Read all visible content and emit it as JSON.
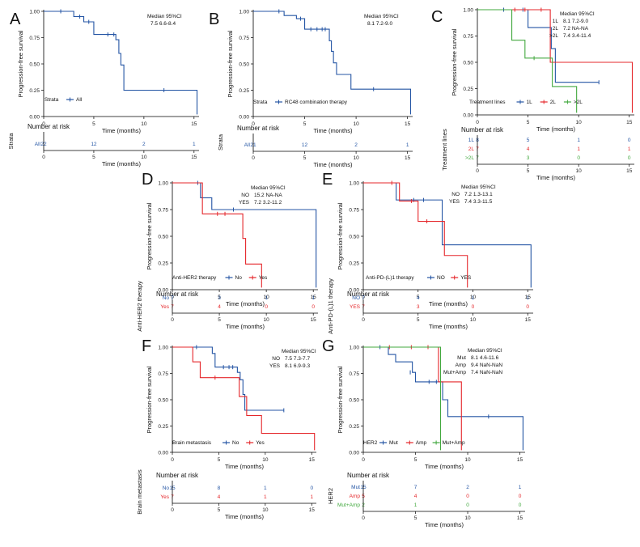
{
  "colors": {
    "blue": "#2455a4",
    "red": "#e5272b",
    "green": "#42a83e",
    "axis": "#000000",
    "text": "#222222"
  },
  "chart_data": [
    {
      "panel": "A",
      "type": "line",
      "title": "",
      "ylabel": "Progression-free survival",
      "xlabel": "Time (months)",
      "xlim": [
        0,
        15.5
      ],
      "ylim": [
        0,
        1
      ],
      "xticks": [
        "0",
        "5",
        "10",
        "15"
      ],
      "yticks": [
        "0.00",
        "0.25",
        "0.50",
        "0.75",
        "1.00"
      ],
      "legend_title": "Strata",
      "legend_position": "bottom-left",
      "median_header": "Median   95%CI",
      "median_rows": [
        {
          "label": "",
          "value": "7.5   6.6-8.4"
        }
      ],
      "series": [
        {
          "name": "All",
          "color": "blue",
          "steps": [
            [
              0,
              1
            ],
            [
              3,
              0.95
            ],
            [
              4,
              0.9
            ],
            [
              5,
              0.78
            ],
            [
              7,
              0.78
            ],
            [
              7.2,
              0.73
            ],
            [
              7.5,
              0.6
            ],
            [
              7.7,
              0.49
            ],
            [
              8,
              0.25
            ],
            [
              15.3,
              0.25
            ],
            [
              15.3,
              0.02
            ]
          ],
          "censor": [
            [
              1.7,
              1
            ],
            [
              3.6,
              0.95
            ],
            [
              4.5,
              0.9
            ],
            [
              6.4,
              0.78
            ],
            [
              7,
              0.78
            ],
            [
              12,
              0.25
            ]
          ]
        }
      ],
      "risk_title": "Number at risk",
      "risk_ylabel": "Strata",
      "risk_xlabel": "Time (months)",
      "risk_rows": [
        {
          "label": "All",
          "color": "blue",
          "values": [
            "22",
            "12",
            "2",
            "1"
          ]
        }
      ]
    },
    {
      "panel": "B",
      "type": "line",
      "title": "",
      "ylabel": "Progression-free survival",
      "xlabel": "Time (months)",
      "xlim": [
        0,
        15.5
      ],
      "ylim": [
        0,
        1
      ],
      "xticks": [
        "0",
        "5",
        "10",
        "15"
      ],
      "yticks": [
        "0.00",
        "0.25",
        "0.50",
        "0.75",
        "1.00"
      ],
      "legend_title": "Strata",
      "legend_position": "bottom-left",
      "median_header": "Median   95%CI",
      "median_rows": [
        {
          "label": "",
          "value": "8.1   7.2-9.0"
        }
      ],
      "series": [
        {
          "name": "RC48 combination therapy",
          "color": "blue",
          "steps": [
            [
              0,
              1
            ],
            [
              3,
              0.96
            ],
            [
              4.2,
              0.93
            ],
            [
              5,
              0.83
            ],
            [
              7.4,
              0.72
            ],
            [
              7.6,
              0.62
            ],
            [
              7.8,
              0.51
            ],
            [
              8.1,
              0.4
            ],
            [
              9.5,
              0.26
            ],
            [
              15.3,
              0.26
            ],
            [
              15.3,
              0.02
            ]
          ],
          "censor": [
            [
              2.5,
              1
            ],
            [
              4.6,
              0.93
            ],
            [
              5.6,
              0.83
            ],
            [
              6.2,
              0.83
            ],
            [
              6.7,
              0.83
            ],
            [
              7.0,
              0.83
            ],
            [
              11.7,
              0.26
            ]
          ]
        }
      ],
      "risk_title": "Number at risk",
      "risk_ylabel": "Strata",
      "risk_xlabel": "Time (months)",
      "risk_rows": [
        {
          "label": "All",
          "color": "blue",
          "values": [
            "21",
            "12",
            "2",
            "1"
          ]
        }
      ]
    },
    {
      "panel": "C",
      "type": "line",
      "title": "",
      "ylabel": "Progression-free survival",
      "xlabel": "Time (months)",
      "xlim": [
        0,
        15.5
      ],
      "ylim": [
        0,
        1
      ],
      "xticks": [
        "0",
        "5",
        "10",
        "15"
      ],
      "yticks": [
        "0.00",
        "0.25",
        "0.50",
        "0.75",
        "1.00"
      ],
      "legend_title": "Treatment lines",
      "legend_position": "bottom-left",
      "median_header": "Median   95%CI",
      "median_rows": [
        {
          "label": "1L",
          "value": "8.1   7.2-9.0"
        },
        {
          "label": "2L",
          "value": "7.2   NA-NA"
        },
        {
          "label": ">2L",
          "value": "7.4   3.4-11.4"
        }
      ],
      "series": [
        {
          "name": "1L",
          "color": "blue",
          "steps": [
            [
              0,
              1
            ],
            [
              5,
              0.83
            ],
            [
              7.3,
              0.63
            ],
            [
              7.7,
              0.31
            ],
            [
              12,
              0.31
            ]
          ],
          "censor": [
            [
              2.6,
              1
            ],
            [
              4.5,
              1
            ],
            [
              12,
              0.31
            ]
          ]
        },
        {
          "name": "2L",
          "color": "red",
          "steps": [
            [
              0,
              1
            ],
            [
              7.2,
              0.5
            ],
            [
              15.3,
              0.5
            ],
            [
              15.3,
              0.02
            ]
          ],
          "censor": [
            [
              3.7,
              1
            ],
            [
              4.7,
              1
            ],
            [
              6.3,
              1
            ]
          ]
        },
        {
          "name": ">2L",
          "color": "green",
          "steps": [
            [
              0,
              1
            ],
            [
              3.4,
              0.71
            ],
            [
              4.7,
              0.54
            ],
            [
              7.4,
              0.27
            ],
            [
              9.8,
              0.27
            ],
            [
              9.8,
              0.02
            ]
          ],
          "censor": [
            [
              5.6,
              0.54
            ]
          ]
        }
      ],
      "risk_title": "Number at risk",
      "risk_ylabel": "Treatment lines",
      "risk_xlabel": "Time (months)",
      "risk_rows": [
        {
          "label": "1L",
          "color": "blue",
          "values": [
            "8",
            "5",
            "1",
            "0"
          ]
        },
        {
          "label": "2L",
          "color": "red",
          "values": [
            "7",
            "4",
            "1",
            "1"
          ]
        },
        {
          "label": ">2L",
          "color": "green",
          "values": [
            "7",
            "3",
            "0",
            "0"
          ]
        }
      ]
    },
    {
      "panel": "D",
      "type": "line",
      "title": "",
      "ylabel": "Progression-free survival",
      "xlabel": "Time (months)",
      "xlim": [
        0,
        15.5
      ],
      "ylim": [
        0,
        1
      ],
      "xticks": [
        "0",
        "5",
        "10",
        "15"
      ],
      "yticks": [
        "0.00",
        "0.25",
        "0.50",
        "0.75",
        "1.00"
      ],
      "legend_title": "Anti-HER2 therapy",
      "legend_position": "bottom-left",
      "median_header": "Median   95%CI",
      "median_rows": [
        {
          "label": "NO",
          "value": "15.2   NA-NA"
        },
        {
          "label": "YES",
          "value": "7.2   3.2-11.2"
        }
      ],
      "series": [
        {
          "name": "No",
          "color": "blue",
          "steps": [
            [
              0,
              1
            ],
            [
              3,
              0.86
            ],
            [
              4.2,
              0.75
            ],
            [
              15.3,
              0.75
            ],
            [
              15.3,
              0.02
            ]
          ],
          "censor": [
            [
              2.7,
              1
            ],
            [
              6.5,
              0.75
            ]
          ]
        },
        {
          "name": "Yes",
          "color": "red",
          "steps": [
            [
              0,
              1
            ],
            [
              3.2,
              0.71
            ],
            [
              7.5,
              0.48
            ],
            [
              7.8,
              0.24
            ],
            [
              9.5,
              0.24
            ],
            [
              9.5,
              0.02
            ]
          ],
          "censor": [
            [
              4.8,
              0.71
            ],
            [
              5.6,
              0.71
            ]
          ]
        }
      ],
      "risk_title": "Number at risk",
      "risk_ylabel": "Anti-HER2 therapy",
      "risk_xlabel": "Time (months)",
      "risk_rows": [
        {
          "label": "No",
          "color": "blue",
          "values": [
            "7",
            "3",
            "1",
            "1"
          ]
        },
        {
          "label": "Yes",
          "color": "red",
          "values": [
            "7",
            "4",
            "0",
            "0"
          ]
        }
      ]
    },
    {
      "panel": "E",
      "type": "line",
      "title": "",
      "ylabel": "Progression-free survival",
      "xlabel": "Time (months)",
      "xlim": [
        0,
        15.5
      ],
      "ylim": [
        0,
        1
      ],
      "xticks": [
        "0",
        "5",
        "10",
        "15"
      ],
      "yticks": [
        "0.00",
        "0.25",
        "0.50",
        "0.75",
        "1.00"
      ],
      "legend_title": "Anti-PD-(L)1 therapy",
      "legend_position": "bottom-left",
      "median_header": "Median   95%CI",
      "median_rows": [
        {
          "label": "NO",
          "value": "7.2   1.3-13.1"
        },
        {
          "label": "YES",
          "value": "7.4   3.3-11.5"
        }
      ],
      "series": [
        {
          "name": "NO",
          "color": "blue",
          "steps": [
            [
              0,
              1
            ],
            [
              3,
              0.84
            ],
            [
              7.2,
              0.42
            ],
            [
              15.3,
              0.42
            ],
            [
              15.3,
              0.02
            ]
          ],
          "censor": [
            [
              4.6,
              0.84
            ],
            [
              5.5,
              0.84
            ]
          ]
        },
        {
          "name": "YES",
          "color": "red",
          "steps": [
            [
              0,
              1
            ],
            [
              3.3,
              0.83
            ],
            [
              5,
              0.64
            ],
            [
              7.4,
              0.32
            ],
            [
              9.5,
              0.32
            ],
            [
              9.5,
              0.02
            ]
          ],
          "censor": [
            [
              2.6,
              1
            ],
            [
              4.4,
              0.83
            ],
            [
              5.8,
              0.64
            ]
          ]
        }
      ],
      "risk_title": "Number at risk",
      "risk_ylabel": "Anti-PD-(L)1 therapy",
      "risk_xlabel": "Time (months)",
      "risk_rows": [
        {
          "label": "NO",
          "color": "blue",
          "values": [
            "7",
            "4",
            "1",
            "1"
          ]
        },
        {
          "label": "YES",
          "color": "red",
          "values": [
            "7",
            "3",
            "0",
            "0"
          ]
        }
      ]
    },
    {
      "panel": "F",
      "type": "line",
      "title": "",
      "ylabel": "Progression-free survival",
      "xlabel": "Time (months)",
      "xlim": [
        0,
        15.5
      ],
      "ylim": [
        0,
        1
      ],
      "xticks": [
        "0",
        "5",
        "10",
        "15"
      ],
      "yticks": [
        "0.00",
        "0.25",
        "0.50",
        "0.75",
        "1.00"
      ],
      "legend_title": "Brain metastasis",
      "legend_position": "bottom-left",
      "median_header": "Median   95%CI",
      "median_rows": [
        {
          "label": "NO",
          "value": "7.5   7.3-7.7"
        },
        {
          "label": "YES",
          "value": "8.1   6.9-9.3"
        }
      ],
      "series": [
        {
          "name": "No",
          "color": "blue",
          "steps": [
            [
              0,
              1
            ],
            [
              4.3,
              0.94
            ],
            [
              4.6,
              0.81
            ],
            [
              7,
              0.76
            ],
            [
              7.3,
              0.69
            ],
            [
              7.6,
              0.55
            ],
            [
              7.8,
              0.4
            ],
            [
              12,
              0.4
            ]
          ],
          "censor": [
            [
              2.6,
              1
            ],
            [
              5.5,
              0.81
            ],
            [
              6.1,
              0.81
            ],
            [
              6.5,
              0.81
            ],
            [
              12,
              0.4
            ]
          ]
        },
        {
          "name": "Yes",
          "color": "red",
          "steps": [
            [
              0,
              1
            ],
            [
              2.2,
              0.86
            ],
            [
              3,
              0.71
            ],
            [
              7.2,
              0.53
            ],
            [
              8,
              0.35
            ],
            [
              9.6,
              0.18
            ],
            [
              15.3,
              0.18
            ],
            [
              15.3,
              0.02
            ]
          ],
          "censor": [
            [
              4.6,
              0.71
            ]
          ]
        }
      ],
      "risk_title": "Number at risk",
      "risk_ylabel": "Brain metastasis",
      "risk_xlabel": "Time (months)",
      "risk_rows": [
        {
          "label": "No",
          "color": "blue",
          "values": [
            "15",
            "8",
            "1",
            "0"
          ]
        },
        {
          "label": "Yes",
          "color": "red",
          "values": [
            "7",
            "4",
            "1",
            "1"
          ]
        }
      ]
    },
    {
      "panel": "G",
      "type": "line",
      "title": "",
      "ylabel": "Progression-free survival",
      "xlabel": "Time (months)",
      "xlim": [
        0,
        15.5
      ],
      "ylim": [
        0,
        1
      ],
      "xticks": [
        "0",
        "5",
        "10",
        "15"
      ],
      "yticks": [
        "0.00",
        "0.25",
        "0.50",
        "0.75",
        "1.00"
      ],
      "legend_title": "HER2",
      "legend_position": "bottom-left",
      "median_header": "Median   95%CI",
      "median_rows": [
        {
          "label": "Mut",
          "value": "8.1   4.6-11.6"
        },
        {
          "label": "Amp",
          "value": "9.4   NaN-NaN"
        },
        {
          "label": "Mut+Amp",
          "value": "7.4   NaN-NaN"
        }
      ],
      "series": [
        {
          "name": "Mut",
          "color": "blue",
          "steps": [
            [
              0,
              1
            ],
            [
              2.4,
              0.93
            ],
            [
              3.1,
              0.86
            ],
            [
              4.7,
              0.76
            ],
            [
              5,
              0.67
            ],
            [
              7.3,
              0.67
            ],
            [
              7.6,
              0.5
            ],
            [
              8.1,
              0.34
            ],
            [
              15.3,
              0.34
            ],
            [
              15.3,
              0.02
            ]
          ],
          "censor": [
            [
              1.6,
              1
            ],
            [
              4.5,
              0.76
            ],
            [
              6.3,
              0.67
            ],
            [
              7,
              0.67
            ],
            [
              12,
              0.34
            ]
          ]
        },
        {
          "name": "Amp",
          "color": "red",
          "steps": [
            [
              0,
              1
            ],
            [
              7.2,
              0.67
            ],
            [
              9.4,
              0.67
            ],
            [
              9.4,
              0.02
            ]
          ],
          "censor": [
            [
              2.5,
              1
            ],
            [
              4.6,
              1
            ],
            [
              6.2,
              1
            ]
          ]
        },
        {
          "name": "Mut+Amp",
          "color": "green",
          "steps": [
            [
              0,
              1
            ],
            [
              7.4,
              1
            ],
            [
              7.4,
              0.02
            ]
          ],
          "censor": []
        }
      ],
      "risk_title": "Number at risk",
      "risk_ylabel": "HER2",
      "risk_xlabel": "Time (months)",
      "risk_rows": [
        {
          "label": "Mut",
          "color": "blue",
          "values": [
            "15",
            "7",
            "2",
            "1"
          ]
        },
        {
          "label": "Amp",
          "color": "red",
          "values": [
            "5",
            "4",
            "0",
            "0"
          ]
        },
        {
          "label": "Mut+Amp",
          "color": "green",
          "values": [
            "2",
            "1",
            "0",
            "0"
          ]
        }
      ]
    }
  ]
}
